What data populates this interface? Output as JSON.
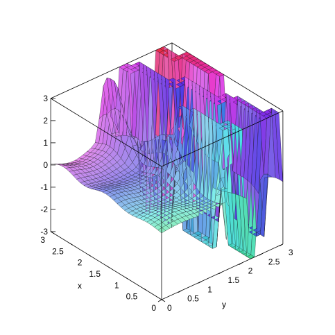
{
  "chart_data": {
    "type": "surface3d",
    "title": "",
    "xlabel": "x",
    "ylabel": "y",
    "zlabel": "",
    "xlim": [
      0,
      3
    ],
    "ylim": [
      0,
      3
    ],
    "zlim": [
      -3,
      3
    ],
    "x_ticks": [
      "3",
      "2.5",
      "2",
      "1.5",
      "1",
      "0.5",
      "0"
    ],
    "y_ticks": [
      "3",
      "2.5",
      "2",
      "1.5",
      "1",
      "0.5",
      "0"
    ],
    "z_ticks": [
      "3",
      "2",
      "1",
      "0",
      "-1",
      "-2",
      "-3"
    ],
    "surface": "z = f(x, y) over a 31 x 31 grid on [0,3] x [0,3]: smooth near z = 0 for small y with mild ripples, a sharp spike reaching z = 3 near y = 1.3 at large x, and curtain-like jumps between z = -3 and z = 3 for y > 1.5 (clipped at the z range).",
    "grid": false,
    "legend": "none",
    "colors": {
      "low": "#7cf0b0",
      "mid": "#e8d0a8",
      "high": "#e060d0",
      "blue": "#7070e8"
    }
  }
}
